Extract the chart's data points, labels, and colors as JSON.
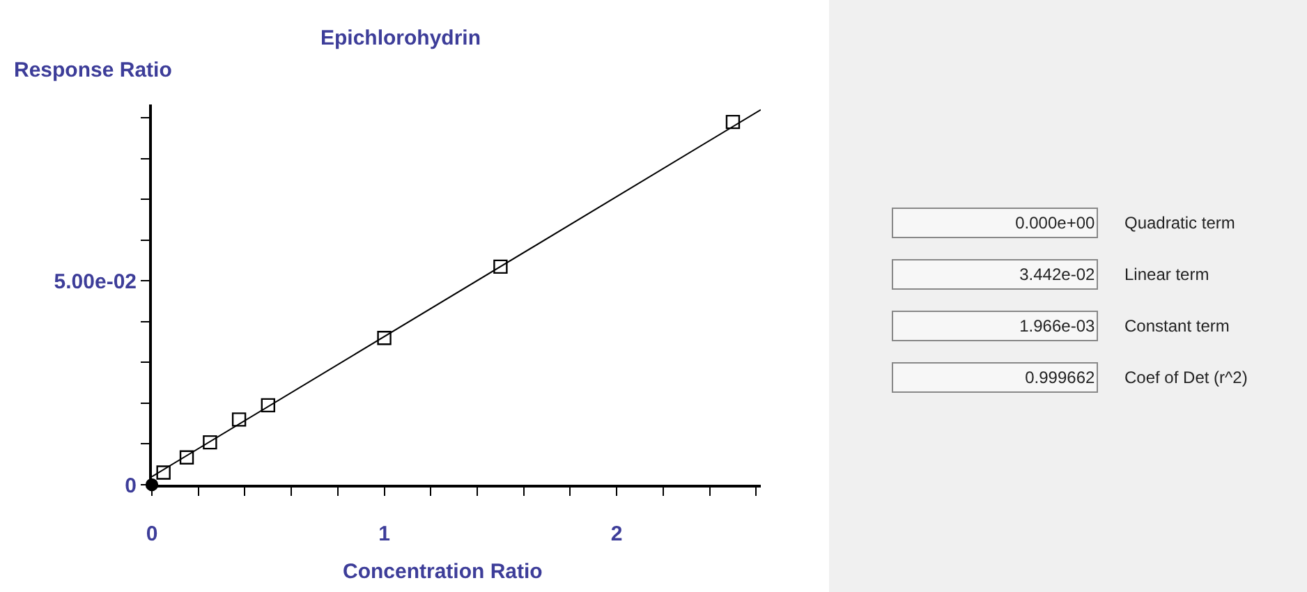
{
  "chart_data": [
    {
      "type": "scatter",
      "title": "Epichlorohydrin",
      "xlabel": "Concentration Ratio",
      "ylabel": "Response Ratio",
      "xlim": [
        0,
        2.62
      ],
      "ylim": [
        0,
        0.0933
      ],
      "xticks": [
        0,
        {
          "value": 0.2,
          "label": null
        },
        {
          "value": 0.4,
          "label": null
        },
        {
          "value": 0.6,
          "label": null
        },
        {
          "value": 0.8,
          "label": null
        },
        1,
        {
          "value": 1.2,
          "label": null
        },
        {
          "value": 1.4,
          "label": null
        },
        {
          "value": 1.6,
          "label": null
        },
        {
          "value": 1.8,
          "label": null
        },
        2,
        {
          "value": 2.2,
          "label": null
        },
        {
          "value": 2.4,
          "label": null
        },
        {
          "value": 2.6,
          "label": null
        }
      ],
      "yticks": [
        0,
        {
          "value": 0.01,
          "label": null
        },
        {
          "value": 0.02,
          "label": null
        },
        {
          "value": 0.03,
          "label": null
        },
        {
          "value": 0.04,
          "label": null
        },
        {
          "value": 0.05,
          "label": "5.00e-02"
        },
        {
          "value": 0.06,
          "label": null
        },
        {
          "value": 0.07,
          "label": null
        },
        {
          "value": 0.08,
          "label": null
        },
        {
          "value": 0.09,
          "label": null
        }
      ],
      "series": [
        {
          "type": "line",
          "marker": "none",
          "color": "#000000",
          "x": [
            0,
            2.62
          ],
          "values": [
            0.002,
            0.092
          ]
        },
        {
          "type": "scatter",
          "marker": "square",
          "color": "#000000",
          "x": [
            0.05,
            0.15,
            0.25,
            0.375,
            0.5,
            1,
            1.5,
            2.5
          ],
          "values": [
            0.003,
            0.0067,
            0.0104,
            0.016,
            0.0195,
            0.036,
            0.0535,
            0.089
          ]
        },
        {
          "type": "scatter",
          "marker": "circle",
          "color": "#000000",
          "x": [
            0
          ],
          "values": [
            0
          ]
        }
      ]
    },
    {
      "type": "other",
      "annotations": [
        "0.000e+00",
        "Quadratic term",
        "3.442e-02",
        "Linear term",
        "1.966e-03",
        "Constant term",
        "0.999662",
        "Coef of Det (r^2)"
      ]
    }
  ]
}
